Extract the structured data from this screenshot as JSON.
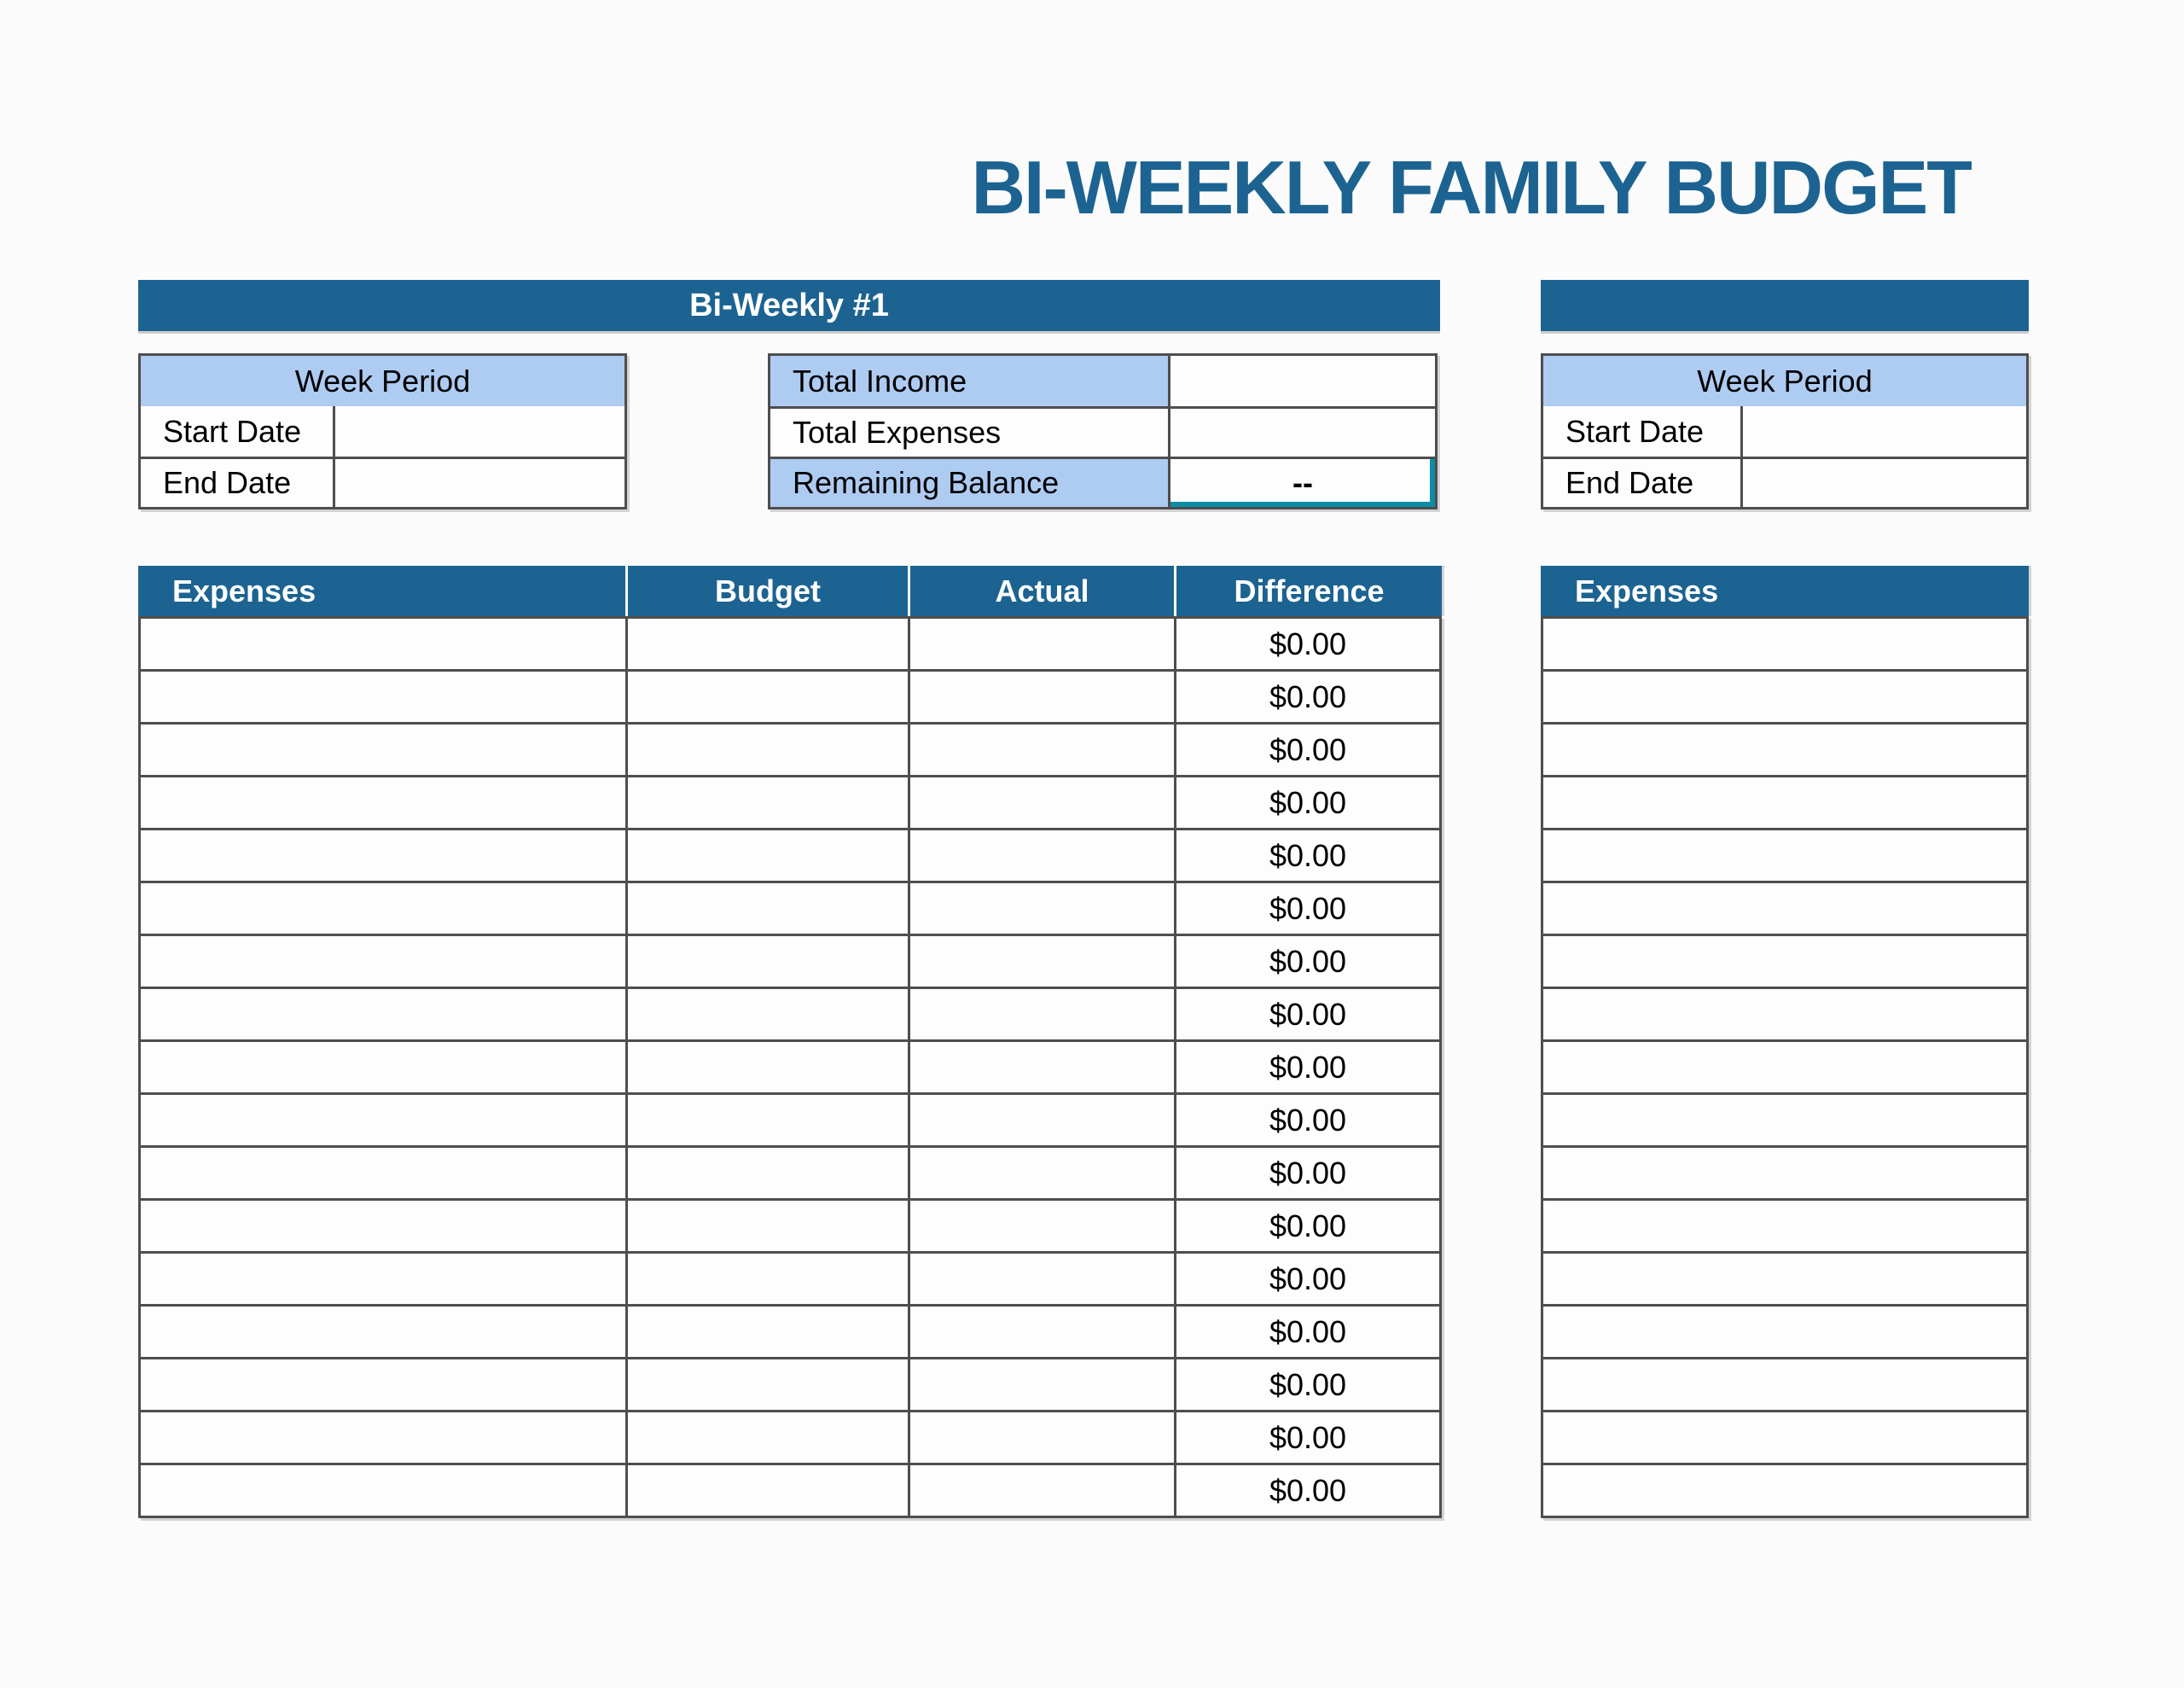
{
  "title": "BI-WEEKLY FAMILY BUDGET",
  "colors": {
    "dark_blue": "#1C6391",
    "light_blue": "#AECBF2",
    "border_gray": "#4E4E4E",
    "selection_teal": "#0D8CA7",
    "page_background": "#FBFBFB"
  },
  "section1": {
    "header_label": "Bi-Weekly #1",
    "week_period": {
      "title": "Week Period",
      "rows": [
        {
          "label": "Start Date",
          "value": ""
        },
        {
          "label": "End Date",
          "value": ""
        }
      ]
    },
    "totals": {
      "rows": [
        {
          "label": "Total Income",
          "value": ""
        },
        {
          "label": "Total Expenses",
          "value": ""
        },
        {
          "label": "Remaining Balance",
          "value": "--"
        }
      ]
    },
    "expense_table": {
      "columns": [
        "Expenses",
        "Budget",
        "Actual",
        "Difference"
      ],
      "rows": [
        {
          "expense": "",
          "budget": "",
          "actual": "",
          "difference": "$0.00"
        },
        {
          "expense": "",
          "budget": "",
          "actual": "",
          "difference": "$0.00"
        },
        {
          "expense": "",
          "budget": "",
          "actual": "",
          "difference": "$0.00"
        },
        {
          "expense": "",
          "budget": "",
          "actual": "",
          "difference": "$0.00"
        },
        {
          "expense": "",
          "budget": "",
          "actual": "",
          "difference": "$0.00"
        },
        {
          "expense": "",
          "budget": "",
          "actual": "",
          "difference": "$0.00"
        },
        {
          "expense": "",
          "budget": "",
          "actual": "",
          "difference": "$0.00"
        },
        {
          "expense": "",
          "budget": "",
          "actual": "",
          "difference": "$0.00"
        },
        {
          "expense": "",
          "budget": "",
          "actual": "",
          "difference": "$0.00"
        },
        {
          "expense": "",
          "budget": "",
          "actual": "",
          "difference": "$0.00"
        },
        {
          "expense": "",
          "budget": "",
          "actual": "",
          "difference": "$0.00"
        },
        {
          "expense": "",
          "budget": "",
          "actual": "",
          "difference": "$0.00"
        },
        {
          "expense": "",
          "budget": "",
          "actual": "",
          "difference": "$0.00"
        },
        {
          "expense": "",
          "budget": "",
          "actual": "",
          "difference": "$0.00"
        },
        {
          "expense": "",
          "budget": "",
          "actual": "",
          "difference": "$0.00"
        },
        {
          "expense": "",
          "budget": "",
          "actual": "",
          "difference": "$0.00"
        },
        {
          "expense": "",
          "budget": "",
          "actual": "",
          "difference": "$0.00"
        }
      ]
    }
  },
  "section2": {
    "header_label": "",
    "week_period": {
      "title": "Week Period",
      "rows": [
        {
          "label": "Start Date",
          "value": ""
        },
        {
          "label": "End Date",
          "value": ""
        }
      ]
    },
    "expense_table": {
      "columns": [
        "Expenses"
      ],
      "rows": [
        "",
        "",
        "",
        "",
        "",
        "",
        "",
        "",
        "",
        "",
        "",
        "",
        "",
        "",
        "",
        "",
        ""
      ]
    }
  }
}
